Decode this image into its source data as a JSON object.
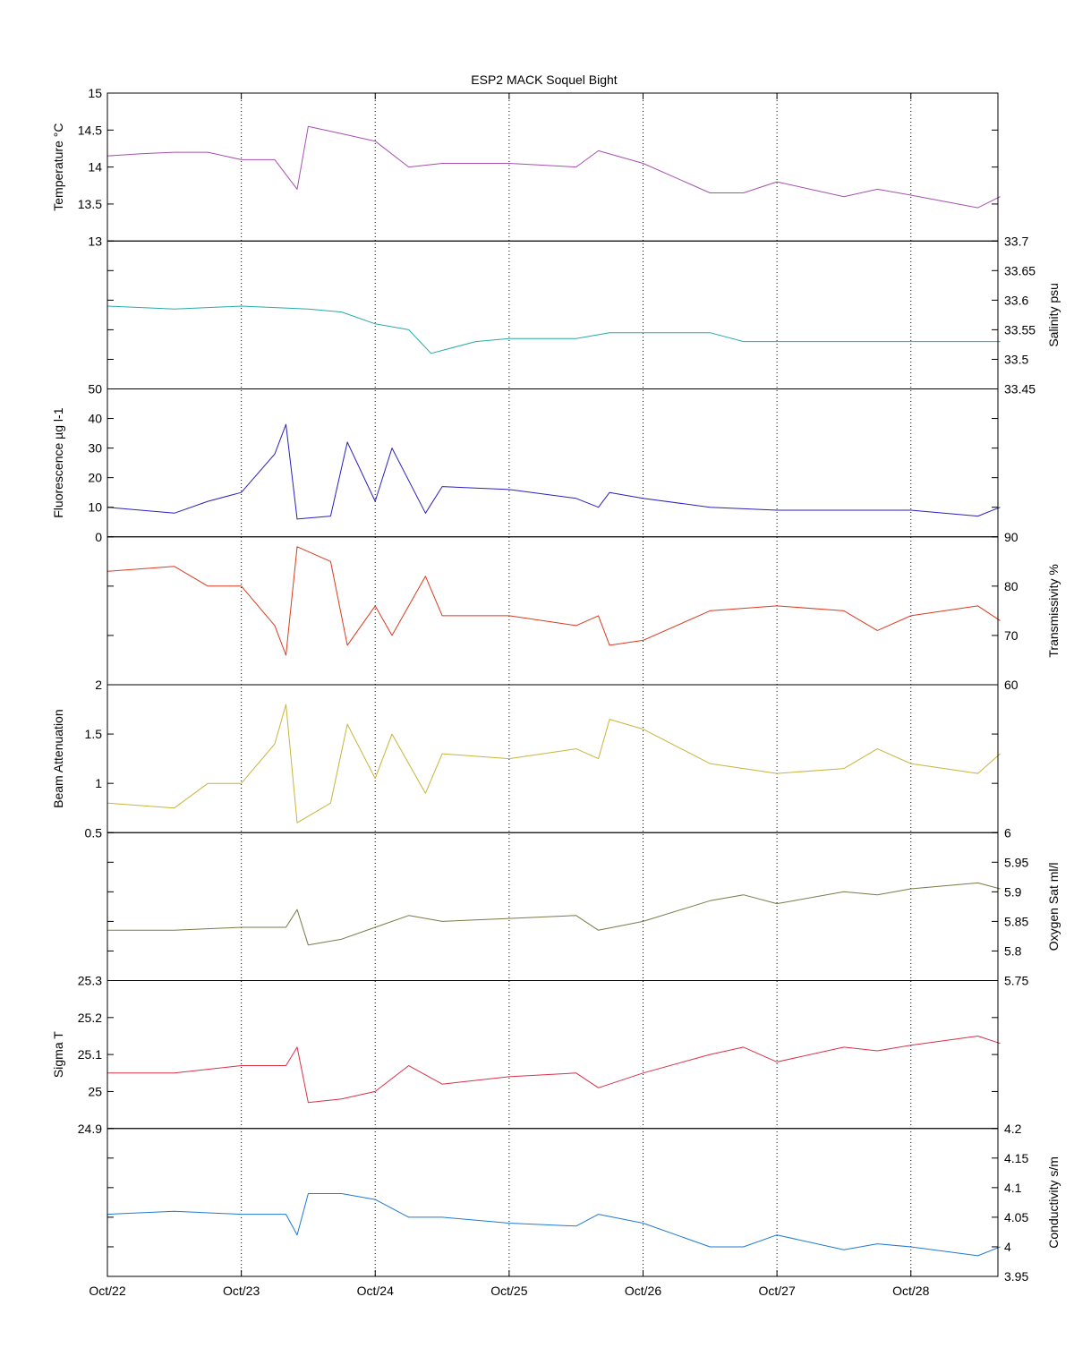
{
  "chart_data": {
    "type": "line",
    "title": "ESP2 MACK  Soquel Bight",
    "x_ticks": [
      "Oct/22",
      "Oct/23",
      "Oct/24",
      "Oct/25",
      "Oct/26",
      "Oct/27",
      "Oct/28"
    ],
    "xlim_days": [
      0,
      6.65
    ],
    "grid": "vertical-dotted",
    "panels": [
      {
        "ylabel": "Temperature °C",
        "axis_side": "left",
        "color": "#a750b0",
        "ylim": [
          13,
          15
        ],
        "ticks": [
          "13",
          "13.5",
          "14",
          "14.5",
          "15"
        ],
        "series": [
          {
            "x": "Oct/22 00:00",
            "y": 14.15
          },
          {
            "x": "Oct/22 06:00",
            "y": 14.18
          },
          {
            "x": "Oct/22 12:00",
            "y": 14.2
          },
          {
            "x": "Oct/22 18:00",
            "y": 14.2
          },
          {
            "x": "Oct/23 00:00",
            "y": 14.1
          },
          {
            "x": "Oct/23 06:00",
            "y": 14.1
          },
          {
            "x": "Oct/23 10:00",
            "y": 13.7
          },
          {
            "x": "Oct/23 12:00",
            "y": 14.55
          },
          {
            "x": "Oct/23 18:00",
            "y": 14.45
          },
          {
            "x": "Oct/24 00:00",
            "y": 14.35
          },
          {
            "x": "Oct/24 06:00",
            "y": 14.0
          },
          {
            "x": "Oct/24 12:00",
            "y": 14.05
          },
          {
            "x": "Oct/24 18:00",
            "y": 14.05
          },
          {
            "x": "Oct/25 00:00",
            "y": 14.05
          },
          {
            "x": "Oct/25 12:00",
            "y": 14.0
          },
          {
            "x": "Oct/25 16:00",
            "y": 14.22
          },
          {
            "x": "Oct/26 00:00",
            "y": 14.05
          },
          {
            "x": "Oct/26 12:00",
            "y": 13.65
          },
          {
            "x": "Oct/26 18:00",
            "y": 13.65
          },
          {
            "x": "Oct/27 00:00",
            "y": 13.8
          },
          {
            "x": "Oct/27 12:00",
            "y": 13.6
          },
          {
            "x": "Oct/27 18:00",
            "y": 13.7
          },
          {
            "x": "Oct/28 00:00",
            "y": 13.62
          },
          {
            "x": "Oct/28 12:00",
            "y": 13.45
          },
          {
            "x": "Oct/28 16:00",
            "y": 13.6
          }
        ]
      },
      {
        "ylabel": "Salinity psu",
        "axis_side": "right",
        "color": "#2aa9a9",
        "ylim": [
          33.45,
          33.7
        ],
        "ticks": [
          "33.45",
          "33.5",
          "33.55",
          "33.6",
          "33.65",
          "33.7"
        ],
        "series": [
          {
            "x": "Oct/22 00:00",
            "y": 33.59
          },
          {
            "x": "Oct/22 12:00",
            "y": 33.585
          },
          {
            "x": "Oct/23 00:00",
            "y": 33.59
          },
          {
            "x": "Oct/23 12:00",
            "y": 33.585
          },
          {
            "x": "Oct/23 18:00",
            "y": 33.58
          },
          {
            "x": "Oct/24 00:00",
            "y": 33.56
          },
          {
            "x": "Oct/24 06:00",
            "y": 33.55
          },
          {
            "x": "Oct/24 10:00",
            "y": 33.51
          },
          {
            "x": "Oct/24 18:00",
            "y": 33.53
          },
          {
            "x": "Oct/25 00:00",
            "y": 33.535
          },
          {
            "x": "Oct/25 12:00",
            "y": 33.535
          },
          {
            "x": "Oct/25 18:00",
            "y": 33.545
          },
          {
            "x": "Oct/26 00:00",
            "y": 33.545
          },
          {
            "x": "Oct/26 12:00",
            "y": 33.545
          },
          {
            "x": "Oct/26 18:00",
            "y": 33.53
          },
          {
            "x": "Oct/27 00:00",
            "y": 33.53
          },
          {
            "x": "Oct/28 00:00",
            "y": 33.53
          },
          {
            "x": "Oct/28 16:00",
            "y": 33.53
          }
        ]
      },
      {
        "ylabel": "Fluorescence µg l-1",
        "axis_side": "left",
        "color": "#2a1fbf",
        "ylim": [
          0,
          50
        ],
        "ticks": [
          "0",
          "10",
          "20",
          "30",
          "40",
          "50"
        ],
        "series": [
          {
            "x": "Oct/22 00:00",
            "y": 10
          },
          {
            "x": "Oct/22 12:00",
            "y": 8
          },
          {
            "x": "Oct/22 18:00",
            "y": 12
          },
          {
            "x": "Oct/23 00:00",
            "y": 15
          },
          {
            "x": "Oct/23 06:00",
            "y": 28
          },
          {
            "x": "Oct/23 08:00",
            "y": 38
          },
          {
            "x": "Oct/23 10:00",
            "y": 6
          },
          {
            "x": "Oct/23 16:00",
            "y": 7
          },
          {
            "x": "Oct/23 19:00",
            "y": 32
          },
          {
            "x": "Oct/24 00:00",
            "y": 12
          },
          {
            "x": "Oct/24 03:00",
            "y": 30
          },
          {
            "x": "Oct/24 09:00",
            "y": 8
          },
          {
            "x": "Oct/24 12:00",
            "y": 17
          },
          {
            "x": "Oct/25 00:00",
            "y": 16
          },
          {
            "x": "Oct/25 12:00",
            "y": 13
          },
          {
            "x": "Oct/25 16:00",
            "y": 10
          },
          {
            "x": "Oct/25 18:00",
            "y": 15
          },
          {
            "x": "Oct/26 00:00",
            "y": 13
          },
          {
            "x": "Oct/26 12:00",
            "y": 10
          },
          {
            "x": "Oct/27 00:00",
            "y": 9
          },
          {
            "x": "Oct/28 00:00",
            "y": 9
          },
          {
            "x": "Oct/28 12:00",
            "y": 7
          },
          {
            "x": "Oct/28 16:00",
            "y": 10
          }
        ]
      },
      {
        "ylabel": "Transmissivity %",
        "axis_side": "right",
        "color": "#d93a1e",
        "ylim": [
          60,
          90
        ],
        "ticks": [
          "60",
          "70",
          "80",
          "90"
        ],
        "series": [
          {
            "x": "Oct/22 00:00",
            "y": 83
          },
          {
            "x": "Oct/22 12:00",
            "y": 84
          },
          {
            "x": "Oct/22 18:00",
            "y": 80
          },
          {
            "x": "Oct/23 00:00",
            "y": 80
          },
          {
            "x": "Oct/23 06:00",
            "y": 72
          },
          {
            "x": "Oct/23 08:00",
            "y": 66
          },
          {
            "x": "Oct/23 10:00",
            "y": 88
          },
          {
            "x": "Oct/23 16:00",
            "y": 85
          },
          {
            "x": "Oct/23 19:00",
            "y": 68
          },
          {
            "x": "Oct/24 00:00",
            "y": 76
          },
          {
            "x": "Oct/24 03:00",
            "y": 70
          },
          {
            "x": "Oct/24 09:00",
            "y": 82
          },
          {
            "x": "Oct/24 12:00",
            "y": 74
          },
          {
            "x": "Oct/25 00:00",
            "y": 74
          },
          {
            "x": "Oct/25 12:00",
            "y": 72
          },
          {
            "x": "Oct/25 16:00",
            "y": 74
          },
          {
            "x": "Oct/25 18:00",
            "y": 68
          },
          {
            "x": "Oct/26 00:00",
            "y": 69
          },
          {
            "x": "Oct/26 12:00",
            "y": 75
          },
          {
            "x": "Oct/27 00:00",
            "y": 76
          },
          {
            "x": "Oct/27 12:00",
            "y": 75
          },
          {
            "x": "Oct/27 18:00",
            "y": 71
          },
          {
            "x": "Oct/28 00:00",
            "y": 74
          },
          {
            "x": "Oct/28 12:00",
            "y": 76
          },
          {
            "x": "Oct/28 16:00",
            "y": 73
          }
        ]
      },
      {
        "ylabel": "Beam Attenuation",
        "axis_side": "left",
        "color": "#c8b43c",
        "ylim": [
          0.5,
          2
        ],
        "ticks": [
          "0.5",
          "1",
          "1.5",
          "2"
        ],
        "series": [
          {
            "x": "Oct/22 00:00",
            "y": 0.8
          },
          {
            "x": "Oct/22 12:00",
            "y": 0.75
          },
          {
            "x": "Oct/22 18:00",
            "y": 1.0
          },
          {
            "x": "Oct/23 00:00",
            "y": 1.0
          },
          {
            "x": "Oct/23 06:00",
            "y": 1.4
          },
          {
            "x": "Oct/23 08:00",
            "y": 1.8
          },
          {
            "x": "Oct/23 10:00",
            "y": 0.6
          },
          {
            "x": "Oct/23 16:00",
            "y": 0.8
          },
          {
            "x": "Oct/23 19:00",
            "y": 1.6
          },
          {
            "x": "Oct/24 00:00",
            "y": 1.05
          },
          {
            "x": "Oct/24 03:00",
            "y": 1.5
          },
          {
            "x": "Oct/24 09:00",
            "y": 0.9
          },
          {
            "x": "Oct/24 12:00",
            "y": 1.3
          },
          {
            "x": "Oct/25 00:00",
            "y": 1.25
          },
          {
            "x": "Oct/25 12:00",
            "y": 1.35
          },
          {
            "x": "Oct/25 16:00",
            "y": 1.25
          },
          {
            "x": "Oct/25 18:00",
            "y": 1.65
          },
          {
            "x": "Oct/26 00:00",
            "y": 1.55
          },
          {
            "x": "Oct/26 12:00",
            "y": 1.2
          },
          {
            "x": "Oct/27 00:00",
            "y": 1.1
          },
          {
            "x": "Oct/27 12:00",
            "y": 1.15
          },
          {
            "x": "Oct/27 18:00",
            "y": 1.35
          },
          {
            "x": "Oct/28 00:00",
            "y": 1.2
          },
          {
            "x": "Oct/28 12:00",
            "y": 1.1
          },
          {
            "x": "Oct/28 16:00",
            "y": 1.3
          }
        ]
      },
      {
        "ylabel": "Oxygen Sat ml/l",
        "axis_side": "right",
        "color": "#7a7a48",
        "ylim": [
          5.75,
          6
        ],
        "ticks": [
          "5.75",
          "5.8",
          "5.85",
          "5.9",
          "5.95",
          "6"
        ],
        "series": [
          {
            "x": "Oct/22 00:00",
            "y": 5.835
          },
          {
            "x": "Oct/22 12:00",
            "y": 5.835
          },
          {
            "x": "Oct/23 00:00",
            "y": 5.84
          },
          {
            "x": "Oct/23 08:00",
            "y": 5.84
          },
          {
            "x": "Oct/23 10:00",
            "y": 5.87
          },
          {
            "x": "Oct/23 12:00",
            "y": 5.81
          },
          {
            "x": "Oct/23 18:00",
            "y": 5.82
          },
          {
            "x": "Oct/24 00:00",
            "y": 5.84
          },
          {
            "x": "Oct/24 06:00",
            "y": 5.86
          },
          {
            "x": "Oct/24 12:00",
            "y": 5.85
          },
          {
            "x": "Oct/25 00:00",
            "y": 5.855
          },
          {
            "x": "Oct/25 12:00",
            "y": 5.86
          },
          {
            "x": "Oct/25 16:00",
            "y": 5.835
          },
          {
            "x": "Oct/26 00:00",
            "y": 5.85
          },
          {
            "x": "Oct/26 12:00",
            "y": 5.885
          },
          {
            "x": "Oct/26 18:00",
            "y": 5.895
          },
          {
            "x": "Oct/27 00:00",
            "y": 5.88
          },
          {
            "x": "Oct/27 12:00",
            "y": 5.9
          },
          {
            "x": "Oct/27 18:00",
            "y": 5.895
          },
          {
            "x": "Oct/28 00:00",
            "y": 5.905
          },
          {
            "x": "Oct/28 12:00",
            "y": 5.915
          },
          {
            "x": "Oct/28 16:00",
            "y": 5.905
          }
        ]
      },
      {
        "ylabel": "Sigma T",
        "axis_side": "left",
        "color": "#d9304a",
        "ylim": [
          24.9,
          25.3
        ],
        "ticks": [
          "24.9",
          "25",
          "25.1",
          "25.2",
          "25.3"
        ],
        "series": [
          {
            "x": "Oct/22 00:00",
            "y": 25.05
          },
          {
            "x": "Oct/22 12:00",
            "y": 25.05
          },
          {
            "x": "Oct/23 00:00",
            "y": 25.07
          },
          {
            "x": "Oct/23 08:00",
            "y": 25.07
          },
          {
            "x": "Oct/23 10:00",
            "y": 25.12
          },
          {
            "x": "Oct/23 12:00",
            "y": 24.97
          },
          {
            "x": "Oct/23 18:00",
            "y": 24.98
          },
          {
            "x": "Oct/24 00:00",
            "y": 25.0
          },
          {
            "x": "Oct/24 06:00",
            "y": 25.07
          },
          {
            "x": "Oct/24 12:00",
            "y": 25.02
          },
          {
            "x": "Oct/25 00:00",
            "y": 25.04
          },
          {
            "x": "Oct/25 12:00",
            "y": 25.05
          },
          {
            "x": "Oct/25 16:00",
            "y": 25.01
          },
          {
            "x": "Oct/26 00:00",
            "y": 25.05
          },
          {
            "x": "Oct/26 12:00",
            "y": 25.1
          },
          {
            "x": "Oct/26 18:00",
            "y": 25.12
          },
          {
            "x": "Oct/27 00:00",
            "y": 25.08
          },
          {
            "x": "Oct/27 12:00",
            "y": 25.12
          },
          {
            "x": "Oct/27 18:00",
            "y": 25.11
          },
          {
            "x": "Oct/28 00:00",
            "y": 25.125
          },
          {
            "x": "Oct/28 12:00",
            "y": 25.15
          },
          {
            "x": "Oct/28 16:00",
            "y": 25.13
          }
        ]
      },
      {
        "ylabel": "Conductivity s/m",
        "axis_side": "right",
        "color": "#1e7ad6",
        "ylim": [
          3.95,
          4.2
        ],
        "ticks": [
          "3.95",
          "4",
          "4.05",
          "4.1",
          "4.15",
          "4.2"
        ],
        "series": [
          {
            "x": "Oct/22 00:00",
            "y": 4.055
          },
          {
            "x": "Oct/22 12:00",
            "y": 4.06
          },
          {
            "x": "Oct/23 00:00",
            "y": 4.055
          },
          {
            "x": "Oct/23 08:00",
            "y": 4.055
          },
          {
            "x": "Oct/23 10:00",
            "y": 4.02
          },
          {
            "x": "Oct/23 12:00",
            "y": 4.09
          },
          {
            "x": "Oct/23 18:00",
            "y": 4.09
          },
          {
            "x": "Oct/24 00:00",
            "y": 4.08
          },
          {
            "x": "Oct/24 06:00",
            "y": 4.05
          },
          {
            "x": "Oct/24 12:00",
            "y": 4.05
          },
          {
            "x": "Oct/25 00:00",
            "y": 4.04
          },
          {
            "x": "Oct/25 12:00",
            "y": 4.035
          },
          {
            "x": "Oct/25 16:00",
            "y": 4.055
          },
          {
            "x": "Oct/26 00:00",
            "y": 4.04
          },
          {
            "x": "Oct/26 12:00",
            "y": 4.0
          },
          {
            "x": "Oct/26 18:00",
            "y": 4.0
          },
          {
            "x": "Oct/27 00:00",
            "y": 4.02
          },
          {
            "x": "Oct/27 12:00",
            "y": 3.995
          },
          {
            "x": "Oct/27 18:00",
            "y": 4.005
          },
          {
            "x": "Oct/28 00:00",
            "y": 4.0
          },
          {
            "x": "Oct/28 12:00",
            "y": 3.985
          },
          {
            "x": "Oct/28 16:00",
            "y": 4.0
          }
        ]
      }
    ]
  }
}
